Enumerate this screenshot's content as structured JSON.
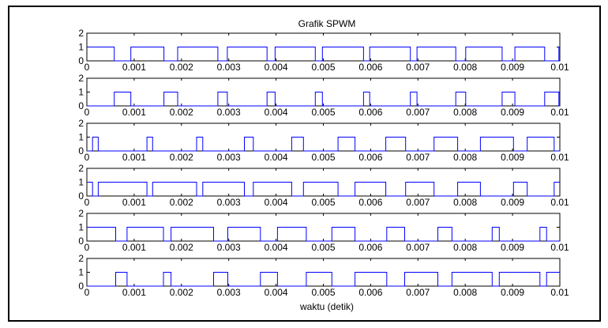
{
  "chart_data": {
    "type": "line",
    "title": "Grafik SPWM",
    "xlabel": "waktu (detik)",
    "ylabel": "",
    "xlim": [
      0,
      0.01
    ],
    "ylim": [
      0,
      2
    ],
    "x_ticks": [
      "0",
      "0.001",
      "0.002",
      "0.003",
      "0.004",
      "0.005",
      "0.006",
      "0.007",
      "0.008",
      "0.009",
      "0.01"
    ],
    "y_ticks": [
      "0",
      "1",
      "2"
    ],
    "line_color": "#0000ff",
    "grid": false,
    "subplots": [
      {
        "pulses_high": [
          [
            0,
            0.00058
          ],
          [
            0.00093,
            0.00163
          ],
          [
            0.00192,
            0.00277
          ],
          [
            0.00297,
            0.00381
          ],
          [
            0.00398,
            0.00483
          ],
          [
            0.00498,
            0.00585
          ],
          [
            0.00598,
            0.00684
          ],
          [
            0.00698,
            0.0078
          ],
          [
            0.00801,
            0.00878
          ],
          [
            0.00905,
            0.00968
          ],
          [
            0.00998,
            0.01
          ]
        ]
      },
      {
        "pulses_high": [
          [
            0.00058,
            0.00093
          ],
          [
            0.00163,
            0.00192
          ],
          [
            0.00277,
            0.00297
          ],
          [
            0.00381,
            0.00398
          ],
          [
            0.00483,
            0.00498
          ],
          [
            0.00585,
            0.00598
          ],
          [
            0.00684,
            0.00698
          ],
          [
            0.0078,
            0.00801
          ],
          [
            0.00878,
            0.00905
          ],
          [
            0.00968,
            0.00998
          ]
        ]
      },
      {
        "pulses_high": [
          [
            0.00012,
            0.00024
          ],
          [
            0.00127,
            0.00139
          ],
          [
            0.00232,
            0.00245
          ],
          [
            0.00333,
            0.00352
          ],
          [
            0.00433,
            0.00458
          ],
          [
            0.00531,
            0.00567
          ],
          [
            0.00632,
            0.00674
          ],
          [
            0.00734,
            0.00784
          ],
          [
            0.00832,
            0.00902
          ],
          [
            0.00931,
            0.00988
          ]
        ]
      },
      {
        "pulses_high": [
          [
            0,
            0.00012
          ],
          [
            0.00024,
            0.00127
          ],
          [
            0.00139,
            0.00232
          ],
          [
            0.00245,
            0.00333
          ],
          [
            0.00352,
            0.00433
          ],
          [
            0.00458,
            0.00531
          ],
          [
            0.00567,
            0.00632
          ],
          [
            0.00674,
            0.00734
          ],
          [
            0.00784,
            0.00832
          ],
          [
            0.00902,
            0.00931
          ],
          [
            0.00988,
            0.01
          ]
        ]
      },
      {
        "pulses_high": [
          [
            0,
            0.00061
          ],
          [
            0.00085,
            0.00162
          ],
          [
            0.00178,
            0.00268
          ],
          [
            0.00298,
            0.00367
          ],
          [
            0.00403,
            0.00464
          ],
          [
            0.00518,
            0.00567
          ],
          [
            0.00634,
            0.00672
          ],
          [
            0.00742,
            0.00772
          ],
          [
            0.00857,
            0.00872
          ],
          [
            0.00958,
            0.00972
          ]
        ]
      },
      {
        "pulses_high": [
          [
            0.00061,
            0.00085
          ],
          [
            0.00162,
            0.00178
          ],
          [
            0.00268,
            0.00298
          ],
          [
            0.00367,
            0.00403
          ],
          [
            0.00464,
            0.00518
          ],
          [
            0.00567,
            0.00634
          ],
          [
            0.00672,
            0.00742
          ],
          [
            0.00772,
            0.00857
          ],
          [
            0.00872,
            0.00958
          ],
          [
            0.00972,
            0.01
          ]
        ]
      }
    ]
  }
}
